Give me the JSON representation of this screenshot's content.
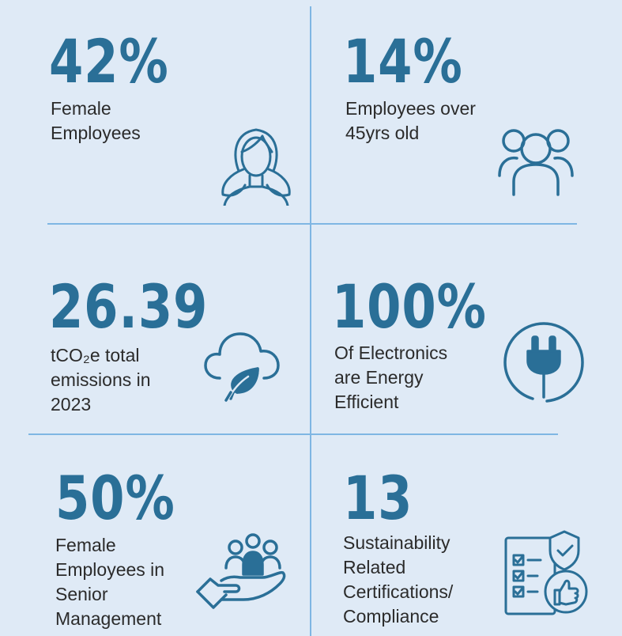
{
  "colors": {
    "background": "#dfeaf6",
    "accent": "#2a6f97",
    "divider": "#7fb6e3",
    "text": "#2b2b2b"
  },
  "cells": [
    {
      "value": "42%",
      "label_lines": [
        "Female",
        "Employees"
      ],
      "icon": "woman-icon"
    },
    {
      "value": "14%",
      "label_lines": [
        "Employees over",
        "45yrs old"
      ],
      "icon": "people-group-icon"
    },
    {
      "value": "26.39",
      "label_lines": [
        "tCO₂e total",
        "emissions in",
        "2023"
      ],
      "icon": "cloud-leaf-icon"
    },
    {
      "value": "100%",
      "label_lines": [
        "Of Electronics",
        "are Energy",
        "Efficient"
      ],
      "icon": "power-plug-icon"
    },
    {
      "value": "50%",
      "label_lines": [
        "Female",
        "Employees in",
        "Senior",
        "Management"
      ],
      "icon": "hand-people-icon"
    },
    {
      "value": "13",
      "label_lines": [
        "Sustainability",
        "Related",
        "Certifications/",
        "Compliance"
      ],
      "icon": "certification-checklist-icon"
    }
  ]
}
